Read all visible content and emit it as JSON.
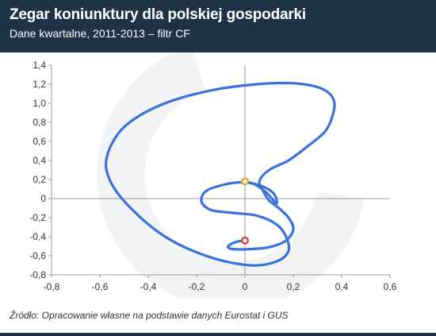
{
  "title": "Zegar koniunktury dla polskiej gospodarki",
  "subtitle": "Dane kwartalne, 2011-2013 – filtr CF",
  "source": "Źródło: Opracowanie własne na podstawie danych Eurostat i GUS",
  "colors": {
    "header_bg": "#1f3348",
    "curve": "#3b72d9",
    "start_marker": "#e8a21d",
    "end_marker": "#d9342b",
    "axis": "#999999"
  },
  "chart_data": {
    "type": "line",
    "title": "Zegar koniunktury dla polskiej gospodarki",
    "subtitle": "Dane kwartalne, 2011-2013 – filtr CF",
    "xlabel": "",
    "ylabel": "",
    "xlim": [
      -0.8,
      0.6
    ],
    "ylim": [
      -0.8,
      1.4
    ],
    "grid": false,
    "x_ticks": [
      "-0,8",
      "-0,6",
      "-0,4",
      "-0,2",
      "0",
      "0,2",
      "0,4",
      "0,6"
    ],
    "y_ticks": [
      "1,4",
      "1,2",
      "1,0",
      "0,8",
      "0,6",
      "0,4",
      "0,2",
      "0",
      "-0,2",
      "-0,4",
      "-0,6",
      "-0,8"
    ],
    "x_tick_values": [
      -0.8,
      -0.6,
      -0.4,
      -0.2,
      0,
      0.2,
      0.4,
      0.6
    ],
    "y_tick_values": [
      1.4,
      1.2,
      1.0,
      0.8,
      0.6,
      0.4,
      0.2,
      0,
      -0.2,
      -0.4,
      -0.6,
      -0.8
    ],
    "series": [
      {
        "x": [
          0.0,
          -0.03,
          -0.06,
          -0.07,
          -0.05,
          0.02,
          0.1,
          0.17,
          0.2,
          0.18,
          0.14,
          0.1,
          0.08,
          0.06,
          0.1,
          0.18,
          0.26,
          0.33,
          0.36,
          0.37,
          0.35,
          0.3,
          0.2,
          0.05,
          -0.15,
          -0.35,
          -0.5,
          -0.57,
          -0.56,
          -0.48,
          -0.33,
          -0.15,
          0.02,
          0.13,
          0.18,
          0.17,
          0.13,
          0.05,
          -0.05,
          -0.14,
          -0.18,
          -0.16,
          -0.08,
          0.0,
          0.07,
          0.12,
          0.13,
          0.09,
          0.04,
          0.0
        ],
        "y": [
          -0.44,
          -0.45,
          -0.48,
          -0.51,
          -0.53,
          -0.53,
          -0.51,
          -0.44,
          -0.32,
          -0.2,
          -0.1,
          -0.02,
          0.06,
          0.18,
          0.3,
          0.4,
          0.55,
          0.7,
          0.85,
          1.0,
          1.1,
          1.17,
          1.21,
          1.2,
          1.13,
          0.98,
          0.75,
          0.45,
          0.2,
          -0.08,
          -0.4,
          -0.61,
          -0.7,
          -0.66,
          -0.55,
          -0.4,
          -0.27,
          -0.18,
          -0.15,
          -0.12,
          -0.03,
          0.08,
          0.15,
          0.17,
          0.13,
          0.05,
          -0.05,
          0.06,
          0.15,
          0.18
        ]
      }
    ],
    "markers": [
      {
        "label": "start",
        "x": 0.0,
        "y": -0.44
      },
      {
        "label": "end",
        "x": 0.0,
        "y": 0.18
      }
    ]
  }
}
